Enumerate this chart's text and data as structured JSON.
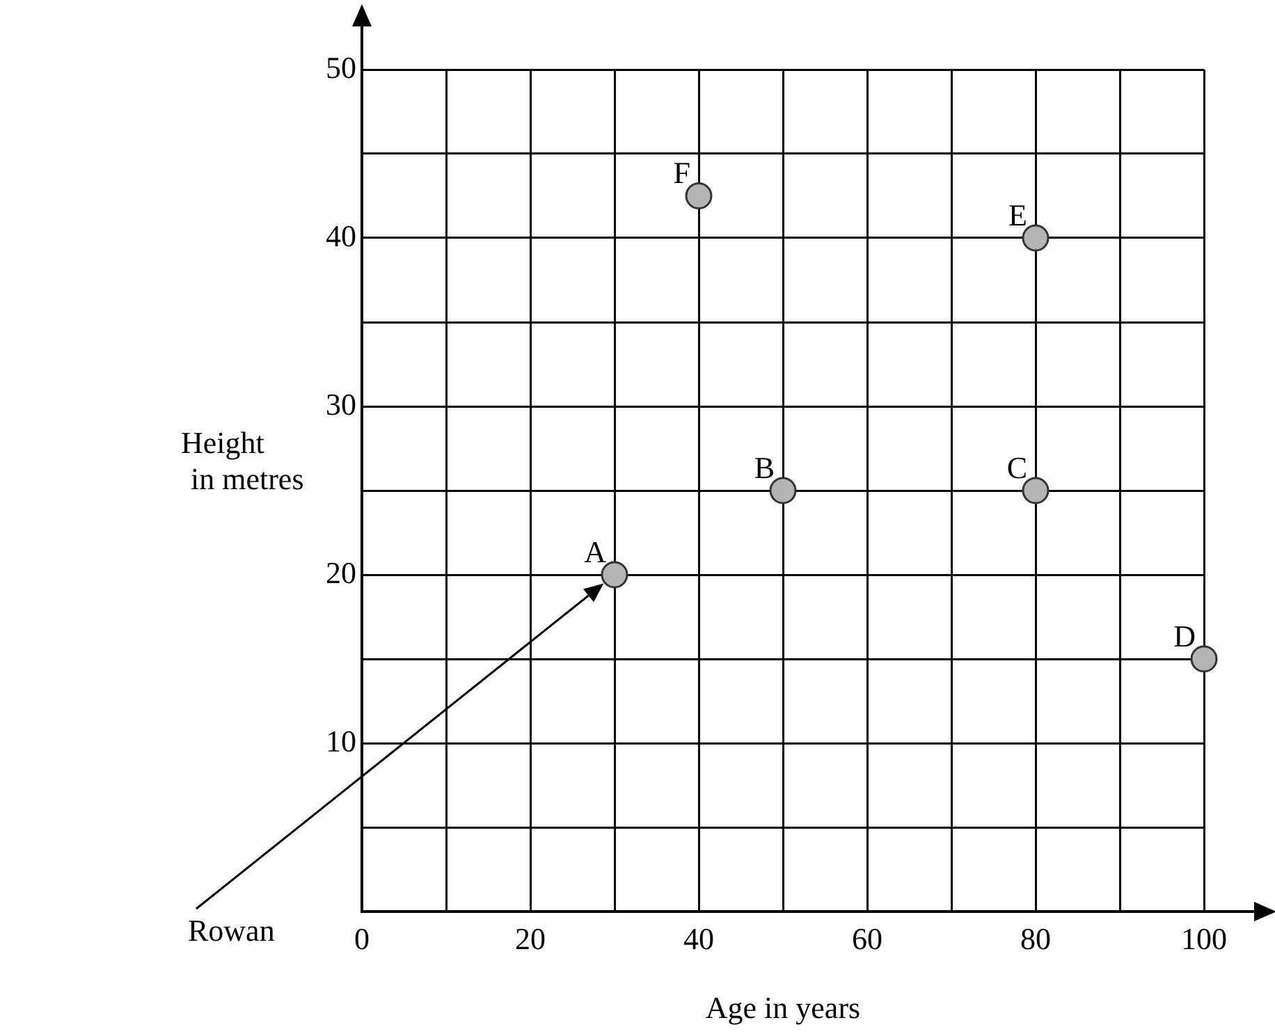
{
  "chart_data": {
    "type": "scatter",
    "xlabel": "Age in years",
    "ylabel": "Height\nin metres",
    "x": [
      30,
      50,
      80,
      100,
      80,
      40
    ],
    "series": [
      {
        "color": "#b4b4b4",
        "values": [
          20,
          25,
          25,
          15,
          40,
          42.5
        ]
      }
    ],
    "xlim": [
      0,
      100
    ],
    "ylim": [
      0,
      50
    ],
    "xticks": [
      {
        "value": 0,
        "label": "0"
      },
      {
        "value": 10,
        "label": null
      },
      20,
      {
        "value": 30,
        "label": null
      },
      40,
      {
        "value": 50,
        "label": null
      },
      60,
      {
        "value": 70,
        "label": null
      },
      80,
      {
        "value": 90,
        "label": null
      },
      100
    ],
    "yticks": [
      {
        "value": 0,
        "label": null
      },
      {
        "value": 5,
        "label": null
      },
      10,
      {
        "value": 15,
        "label": null
      },
      20,
      {
        "value": 25,
        "label": null
      },
      30,
      {
        "value": 35,
        "label": null
      },
      40,
      {
        "value": 45,
        "label": null
      },
      50
    ],
    "grid": true,
    "marker": "circle",
    "legend": false,
    "annotations": [
      {
        "text": "A",
        "x": 30,
        "y": 20
      },
      {
        "text": "B",
        "x": 50,
        "y": 25
      },
      {
        "text": "C",
        "x": 80,
        "y": 25
      },
      {
        "text": "D",
        "x": 100,
        "y": 15
      },
      {
        "text": "E",
        "x": 80,
        "y": 40
      },
      {
        "text": "F",
        "x": 40,
        "y": 42.5
      },
      "Rowan"
    ]
  }
}
